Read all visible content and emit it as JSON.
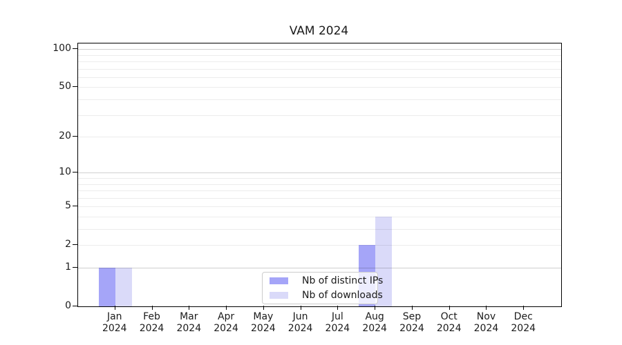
{
  "chart_data": {
    "type": "bar",
    "title": "VAM 2024",
    "categories": [
      "Jan",
      "Feb",
      "Mar",
      "Apr",
      "May",
      "Jun",
      "Jul",
      "Aug",
      "Sep",
      "Oct",
      "Nov",
      "Dec"
    ],
    "x_year_label": "2024",
    "series": [
      {
        "name": "Nb of distinct IPs",
        "color": "#a5a5f8",
        "values": [
          1,
          0,
          0,
          0,
          0,
          0,
          0,
          2,
          0,
          0,
          0,
          0
        ]
      },
      {
        "name": "Nb of downloads",
        "color": "#dadaf9",
        "values": [
          1,
          0,
          0,
          0,
          0,
          0,
          0,
          4,
          0,
          0,
          0,
          0
        ]
      }
    ],
    "y_axis": {
      "scale": "log10(1+value)",
      "tick_values": [
        0,
        1,
        2,
        5,
        10,
        20,
        50,
        100
      ],
      "major_gridlines": [
        1,
        10,
        100
      ],
      "minor_gridlines": [
        2,
        3,
        4,
        5,
        6,
        7,
        8,
        9,
        20,
        30,
        40,
        50,
        60,
        70,
        80,
        90
      ],
      "range": [
        0,
        112
      ]
    },
    "x_axis": {
      "range_note": "one empty slot of padding left and right"
    },
    "legend": {
      "position": "lower-center"
    },
    "grid": true
  },
  "colors": {
    "major_grid": "rgba(0,0,0,0.19)",
    "minor_grid": "rgba(0,0,0,0.075)",
    "axis": "#000000",
    "text": "#1a1a1a",
    "legend_border": "#cccccc",
    "background": "#ffffff"
  }
}
